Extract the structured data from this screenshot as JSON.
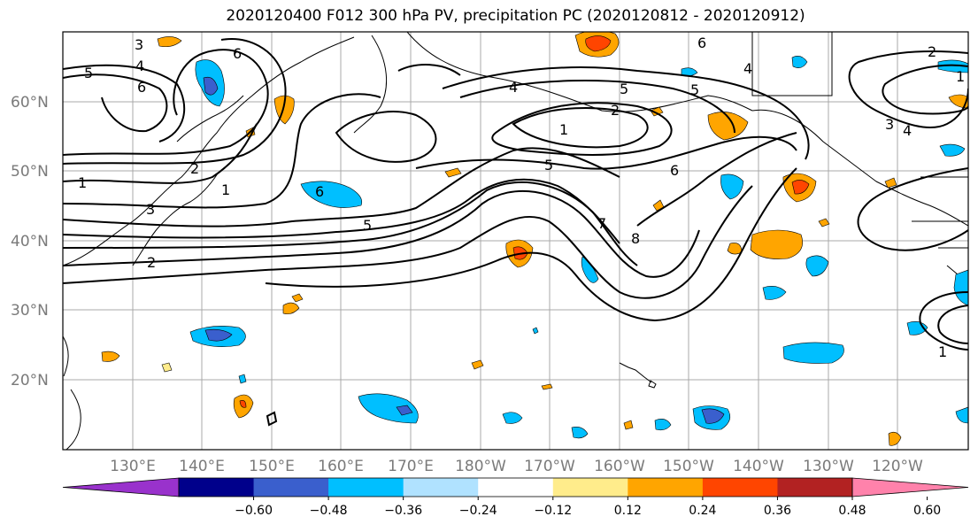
{
  "title": "2020120400 F012 300 hPa PV, precipitation PC (2020120812 - 2020120912)",
  "lat_labels": [
    {
      "label": "60°N",
      "lat": 60
    },
    {
      "label": "50°N",
      "lat": 50
    },
    {
      "label": "40°N",
      "lat": 40
    },
    {
      "label": "30°N",
      "lat": 30
    },
    {
      "label": "20°N",
      "lat": 20
    }
  ],
  "lon_labels": [
    {
      "label": "130°E",
      "lon": 130
    },
    {
      "label": "140°E",
      "lon": 140
    },
    {
      "label": "150°E",
      "lon": 150
    },
    {
      "label": "160°E",
      "lon": 160
    },
    {
      "label": "170°E",
      "lon": 170
    },
    {
      "label": "180°W",
      "lon": 180
    },
    {
      "label": "170°W",
      "lon": 190
    },
    {
      "label": "160°W",
      "lon": 200
    },
    {
      "label": "150°W",
      "lon": 210
    },
    {
      "label": "140°W",
      "lon": 220
    },
    {
      "label": "130°W",
      "lon": 230
    },
    {
      "label": "120°W",
      "lon": 240
    }
  ],
  "colorbar": {
    "colors": [
      "#9932cc",
      "#00008b",
      "#3a5fcd",
      "#00bfff",
      "#b0e2ff",
      "#ffffff",
      "#ffec8b",
      "#ffa500",
      "#ff4500",
      "#b22222",
      "#ff82ab"
    ],
    "tick_labels": [
      "−0.60",
      "−0.48",
      "−0.36",
      "−0.24",
      "−0.12",
      "0.12",
      "0.24",
      "0.36",
      "0.48",
      "0.60"
    ]
  },
  "contour_labels": [
    "3",
    "5",
    "4",
    "6",
    "1",
    "2",
    "1",
    "3",
    "2",
    "6",
    "5",
    "4",
    "1",
    "2",
    "5",
    "5",
    "6",
    "7",
    "8",
    "6",
    "4",
    "5",
    "6",
    "2",
    "3",
    "4",
    "1",
    "1"
  ]
}
